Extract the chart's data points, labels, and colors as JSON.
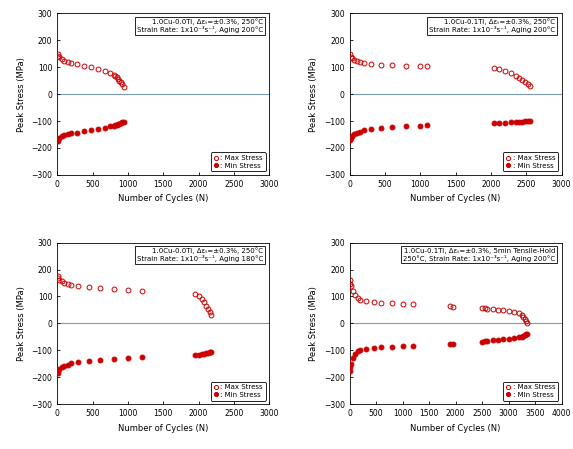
{
  "subplots": [
    {
      "title_line1": "1.0Cu-0.0Ti, Δεₜ=±0.3%, 250°C",
      "title_line2": "Strain Rate: 1x10⁻³s⁻¹, Aging 200°C",
      "xlim": [
        0,
        3000
      ],
      "ylim": [
        -300,
        300
      ],
      "xticks": [
        0,
        500,
        1000,
        1500,
        2000,
        2500,
        3000
      ],
      "max_stress_x": [
        5,
        15,
        30,
        60,
        100,
        150,
        200,
        280,
        380,
        480,
        580,
        680,
        750,
        800,
        820,
        840,
        860,
        880,
        900,
        920,
        940
      ],
      "max_stress_y": [
        150,
        143,
        137,
        130,
        125,
        120,
        116,
        111,
        105,
        100,
        94,
        87,
        80,
        73,
        68,
        62,
        56,
        50,
        44,
        36,
        28
      ],
      "min_stress_x": [
        5,
        15,
        30,
        60,
        100,
        150,
        200,
        280,
        380,
        480,
        580,
        680,
        750,
        800,
        820,
        840,
        860,
        880,
        900,
        920,
        940
      ],
      "min_stress_y": [
        -175,
        -168,
        -162,
        -157,
        -153,
        -149,
        -146,
        -143,
        -138,
        -133,
        -128,
        -124,
        -120,
        -117,
        -115,
        -113,
        -111,
        -109,
        -107,
        -105,
        -103
      ]
    },
    {
      "title_line1": "1.0Cu-0.1Ti, Δεₜ=±0.3%, 250°C",
      "title_line2": "Strain Rate: 1x10⁻³s⁻¹, Aging 200°C",
      "xlim": [
        0,
        3000
      ],
      "ylim": [
        -300,
        300
      ],
      "xticks": [
        0,
        500,
        1000,
        1500,
        2000,
        2500,
        3000
      ],
      "max_stress_x": [
        5,
        15,
        30,
        60,
        100,
        150,
        200,
        300,
        450,
        600,
        800,
        1000,
        1100,
        2050,
        2120,
        2200,
        2280,
        2350,
        2400,
        2440,
        2480,
        2520,
        2550
      ],
      "max_stress_y": [
        148,
        140,
        135,
        128,
        123,
        119,
        116,
        113,
        110,
        108,
        106,
        105,
        104,
        98,
        92,
        85,
        77,
        68,
        60,
        53,
        45,
        38,
        32
      ],
      "min_stress_x": [
        5,
        15,
        30,
        60,
        100,
        150,
        200,
        300,
        450,
        600,
        800,
        1000,
        1100,
        2050,
        2120,
        2200,
        2280,
        2350,
        2400,
        2440,
        2480,
        2520,
        2550
      ],
      "min_stress_y": [
        -170,
        -162,
        -155,
        -148,
        -143,
        -139,
        -135,
        -131,
        -126,
        -122,
        -119,
        -117,
        -116,
        -108,
        -107,
        -106,
        -105,
        -104,
        -103,
        -102,
        -101,
        -100,
        -99
      ]
    },
    {
      "title_line1": "1.0Cu-0.0Ti, Δεₜ=±0.3%, 250°C",
      "title_line2": "Strain Rate: 1x10⁻³s⁻¹, Aging 180°C",
      "xlim": [
        0,
        3000
      ],
      "ylim": [
        -300,
        300
      ],
      "xticks": [
        0,
        500,
        1000,
        1500,
        2000,
        2500,
        3000
      ],
      "max_stress_x": [
        5,
        15,
        30,
        60,
        100,
        150,
        200,
        300,
        450,
        600,
        800,
        1000,
        1200,
        1950,
        2010,
        2050,
        2080,
        2110,
        2140,
        2160,
        2180
      ],
      "max_stress_y": [
        178,
        168,
        162,
        156,
        151,
        147,
        143,
        139,
        135,
        131,
        128,
        124,
        121,
        110,
        100,
        90,
        78,
        65,
        52,
        41,
        30
      ],
      "min_stress_x": [
        5,
        15,
        30,
        60,
        100,
        150,
        200,
        300,
        450,
        600,
        800,
        1000,
        1200,
        1950,
        2010,
        2050,
        2080,
        2110,
        2140,
        2160,
        2180
      ],
      "min_stress_y": [
        -185,
        -176,
        -170,
        -163,
        -157,
        -153,
        -149,
        -145,
        -140,
        -136,
        -132,
        -129,
        -126,
        -118,
        -116,
        -114,
        -112,
        -111,
        -109,
        -108,
        -107
      ]
    },
    {
      "title_line1": "1.0Cu-0.1Ti, Δεₜ=±0.3%, 5min Tensile-Hold",
      "title_line2": "250°C, Strain Rate: 1x10⁻³s⁻¹, Aging 200°C",
      "xlim": [
        0,
        4000
      ],
      "ylim": [
        -300,
        300
      ],
      "xticks": [
        0,
        500,
        1000,
        1500,
        2000,
        2500,
        3000,
        3500,
        4000
      ],
      "max_stress_x": [
        5,
        15,
        30,
        60,
        100,
        150,
        200,
        300,
        450,
        600,
        800,
        1000,
        1200,
        1900,
        1950,
        2500,
        2550,
        2600,
        2700,
        2800,
        2900,
        3000,
        3100,
        3200,
        3250,
        3280,
        3310,
        3330,
        3350
      ],
      "max_stress_y": [
        160,
        148,
        138,
        122,
        105,
        93,
        87,
        82,
        78,
        76,
        74,
        73,
        72,
        63,
        62,
        57,
        56,
        55,
        53,
        51,
        49,
        46,
        43,
        38,
        32,
        25,
        18,
        10,
        3
      ],
      "min_stress_x": [
        5,
        15,
        30,
        60,
        100,
        150,
        200,
        300,
        450,
        600,
        800,
        1000,
        1200,
        1900,
        1950,
        2500,
        2550,
        2600,
        2700,
        2800,
        2900,
        3000,
        3100,
        3200,
        3250,
        3280,
        3310,
        3330,
        3350
      ],
      "min_stress_y": [
        -178,
        -162,
        -150,
        -130,
        -113,
        -103,
        -98,
        -94,
        -90,
        -88,
        -86,
        -85,
        -84,
        -78,
        -77,
        -68,
        -67,
        -66,
        -63,
        -61,
        -59,
        -57,
        -55,
        -52,
        -49,
        -46,
        -43,
        -40,
        -38
      ]
    }
  ],
  "marker_color": "#CC0000",
  "marker_size": 3.5,
  "hline_color": "#7799BB",
  "legend_max_label": ": Max Stress",
  "legend_min_label": ": Min Stress",
  "xlabel": "Number of Cycles (N)",
  "ylabel": "Peak Stress (MPa)"
}
